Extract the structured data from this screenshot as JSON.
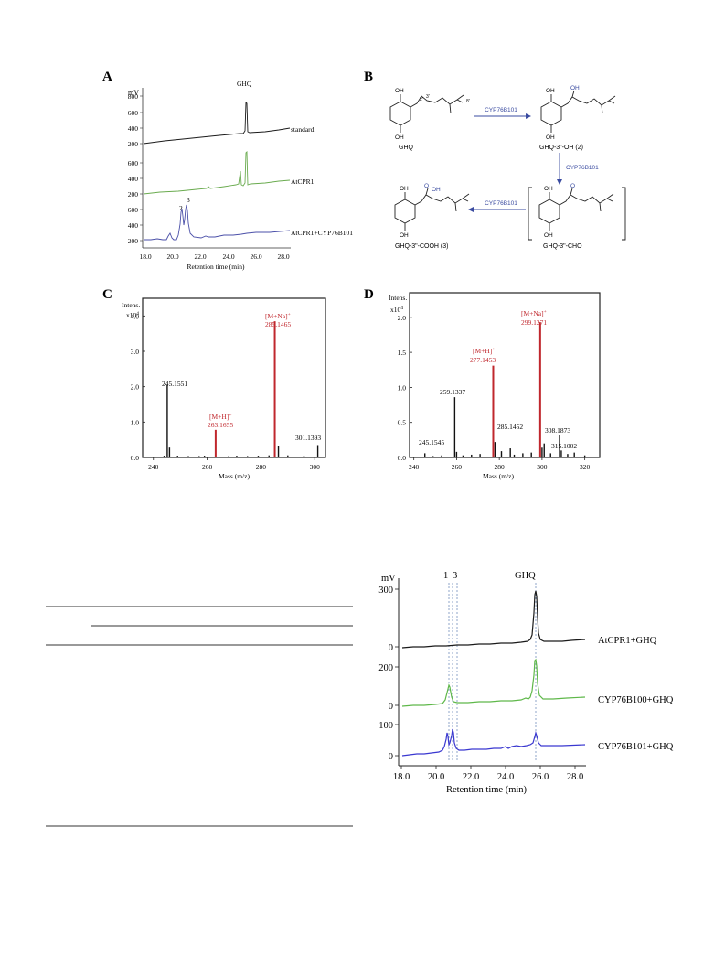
{
  "colors": {
    "black": "#1a1a1a",
    "green": "#6aab4f",
    "blue": "#4a4fa8",
    "red": "#c0272d",
    "arrow_label": "#3a4ba0",
    "bright_green": "#5fb84a",
    "bright_blue": "#3a38d0",
    "dash": "#8fa6c8"
  },
  "panelA": {
    "letter": "A",
    "unit": "mV",
    "xlabel": "Retention time (min)",
    "xticks": [
      "18.0",
      "20.0",
      "22.0",
      "24.0",
      "26.0",
      "28.0"
    ],
    "peak_label": "GHQ",
    "traces": [
      {
        "label": "standard",
        "ticks": [
          "200",
          "400",
          "600",
          "800"
        ]
      },
      {
        "label": "AtCPR1",
        "ticks": [
          "200",
          "400",
          "600"
        ]
      },
      {
        "label": "AtCPR1+CYP76B101",
        "ticks": [
          "200",
          "400",
          "600"
        ]
      }
    ],
    "peak_numbers": [
      "2",
      "3"
    ]
  },
  "panelB": {
    "letter": "B",
    "enzyme": "CYP76B101",
    "compounds": [
      "GHQ",
      "GHQ-3\"-OH (2)",
      "GHQ-3\"-CHO",
      "GHQ-3\"-COOH (3)"
    ],
    "oh": "OH",
    "o": "O",
    "numbering": [
      "1",
      "2",
      "3",
      "4",
      "5",
      "6",
      "1'",
      "2'",
      "3'",
      "4'",
      "5'",
      "6'",
      "7'",
      "8'"
    ]
  },
  "panelC": {
    "letter": "C",
    "ylabel_top": "Intens.",
    "ylabel_scale": "x10",
    "ylabel_exp": "4",
    "xlabel": "Mass (m/z)",
    "chart_data": {
      "type": "bar",
      "x": [
        244,
        245.1551,
        246,
        249,
        253,
        257,
        259,
        263.1655,
        268,
        271,
        275,
        279,
        283,
        285.1465,
        286.5,
        290,
        296,
        301.1393
      ],
      "values": [
        0.05,
        2.05,
        0.28,
        0.05,
        0.04,
        0.04,
        0.05,
        0.78,
        0.04,
        0.05,
        0.04,
        0.05,
        0.06,
        3.85,
        0.32,
        0.06,
        0.05,
        0.35
      ],
      "xlim": [
        236,
        304
      ],
      "ylim": [
        0,
        4.5
      ],
      "xticks": [
        "240",
        "260",
        "280",
        "300"
      ],
      "yticks": [
        "0.0",
        "1.0",
        "2.0",
        "3.0",
        "4.0"
      ],
      "labels": {
        "p245": "245.1551",
        "mh_ion": "[M+H]",
        "mh_value": "263.1655",
        "mna_ion": "[M+Na]",
        "mna_value": "285.1465",
        "p301": "301.1393",
        "plus": "+"
      }
    }
  },
  "panelD": {
    "letter": "D",
    "ylabel_top": "Intens.",
    "ylabel_scale": "x10",
    "ylabel_exp": "4",
    "xlabel": "Mass (m/z)",
    "chart_data": {
      "type": "bar",
      "x": [
        245.1545,
        249,
        253,
        259.1337,
        260,
        263,
        267,
        271,
        277.1453,
        278,
        281,
        285.1452,
        287,
        291,
        295,
        299.1271,
        300,
        301,
        304,
        308.1873,
        309,
        312,
        315.1002,
        320
      ],
      "values": [
        0.06,
        0.02,
        0.03,
        0.86,
        0.08,
        0.03,
        0.04,
        0.05,
        1.31,
        0.22,
        0.09,
        0.13,
        0.04,
        0.06,
        0.07,
        1.93,
        0.14,
        0.2,
        0.06,
        0.32,
        0.1,
        0.05,
        0.07,
        0.03
      ],
      "xlim": [
        238,
        327
      ],
      "ylim": [
        0,
        2.35
      ],
      "xticks": [
        "240",
        "260",
        "280",
        "300",
        "320"
      ],
      "yticks": [
        "0.0",
        "0.5",
        "1.0",
        "1.5",
        "2.0"
      ],
      "labels": {
        "p245": "245.1545",
        "p259": "259.1337",
        "mh_ion": "[M+H]",
        "mh_value": "277.1453",
        "p285": "285.1452",
        "mna_ion": "[M+Na]",
        "mna_value": "299.1271",
        "p308": "308.1873",
        "p315": "315.1002",
        "plus": "+"
      }
    }
  },
  "panelE": {
    "unit": "mV",
    "xlabel": "Retention time (min)",
    "xticks": [
      "18.0",
      "20.0",
      "22.0",
      "24.0",
      "26.0",
      "28.0"
    ],
    "peak_labels": [
      "1",
      "3"
    ],
    "peak_ghq": "GHQ",
    "traces": [
      {
        "label": "AtCPR1+GHQ",
        "ticks": [
          "0",
          "300"
        ]
      },
      {
        "label": "CYP76B100+GHQ",
        "ticks": [
          "0",
          "200"
        ]
      },
      {
        "label": "CYP76B101+GHQ",
        "ticks": [
          "0",
          "100"
        ]
      }
    ]
  }
}
